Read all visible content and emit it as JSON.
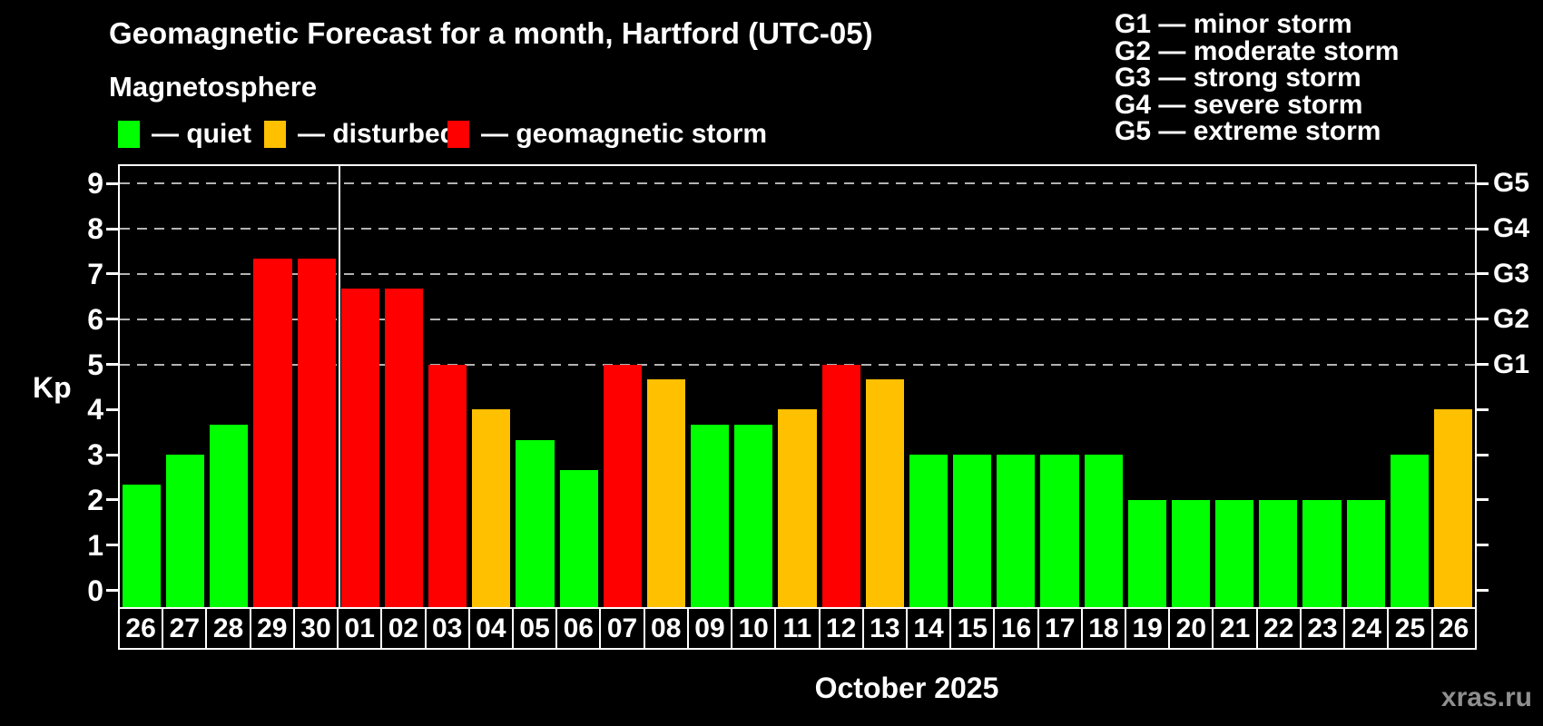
{
  "title": "Geomagnetic Forecast for a month, Hartford (UTC-05)",
  "subtitle": "Magnetosphere",
  "legend": [
    {
      "status": "quiet",
      "label": "— quiet"
    },
    {
      "status": "disturbed",
      "label": "— disturbed"
    },
    {
      "status": "storm",
      "label": "— geomagnetic storm"
    }
  ],
  "g_legend": [
    "G1 — minor storm",
    "G2 — moderate storm",
    "G3 — strong storm",
    "G4 — severe storm",
    "G5 — extreme storm"
  ],
  "colors": {
    "quiet": "#00ff00",
    "disturbed": "#ffc000",
    "storm": "#ff0000",
    "background": "#000000",
    "grid": "#b3b3b3",
    "axis": "#ffffff",
    "watermark": "#8f8f8f"
  },
  "axis": {
    "ylabel": "Kp",
    "xlabel": "October 2025",
    "yticks": [
      0,
      1,
      2,
      3,
      4,
      5,
      6,
      7,
      8,
      9
    ],
    "g_ticks": [
      {
        "kp": 5,
        "label": "G1"
      },
      {
        "kp": 6,
        "label": "G2"
      },
      {
        "kp": 7,
        "label": "G3"
      },
      {
        "kp": 8,
        "label": "G4"
      },
      {
        "kp": 9,
        "label": "G5"
      }
    ]
  },
  "watermark": "xras.ru",
  "chart_data": {
    "type": "bar",
    "title": "Geomagnetic Forecast for a month, Hartford (UTC-05)",
    "ylabel": "Kp",
    "xlabel": "October 2025",
    "ylim": [
      0,
      9
    ],
    "grid": "dashed horizontal at Kp 5-9 only",
    "legend_position": "top-left",
    "categories": [
      "26",
      "27",
      "28",
      "29",
      "30",
      "01",
      "02",
      "03",
      "04",
      "05",
      "06",
      "07",
      "08",
      "09",
      "10",
      "11",
      "12",
      "13",
      "14",
      "15",
      "16",
      "17",
      "18",
      "19",
      "20",
      "21",
      "22",
      "23",
      "24",
      "25",
      "26"
    ],
    "values": [
      2.33,
      3,
      3.67,
      7.33,
      7.33,
      6.67,
      6.67,
      5,
      4,
      3.33,
      2.67,
      5,
      4.67,
      3.67,
      3.67,
      4,
      5,
      4.67,
      3,
      3,
      3,
      3,
      3,
      2,
      2,
      2,
      2,
      2,
      2,
      3,
      4
    ],
    "statuses": [
      "quiet",
      "quiet",
      "quiet",
      "storm",
      "storm",
      "storm",
      "storm",
      "storm",
      "disturbed",
      "quiet",
      "quiet",
      "storm",
      "disturbed",
      "quiet",
      "quiet",
      "disturbed",
      "storm",
      "disturbed",
      "quiet",
      "quiet",
      "quiet",
      "quiet",
      "quiet",
      "quiet",
      "quiet",
      "quiet",
      "quiet",
      "quiet",
      "quiet",
      "quiet",
      "disturbed"
    ],
    "gridlines_kp": [
      5,
      6,
      7,
      8,
      9
    ],
    "month_separator_after_index": 4
  }
}
